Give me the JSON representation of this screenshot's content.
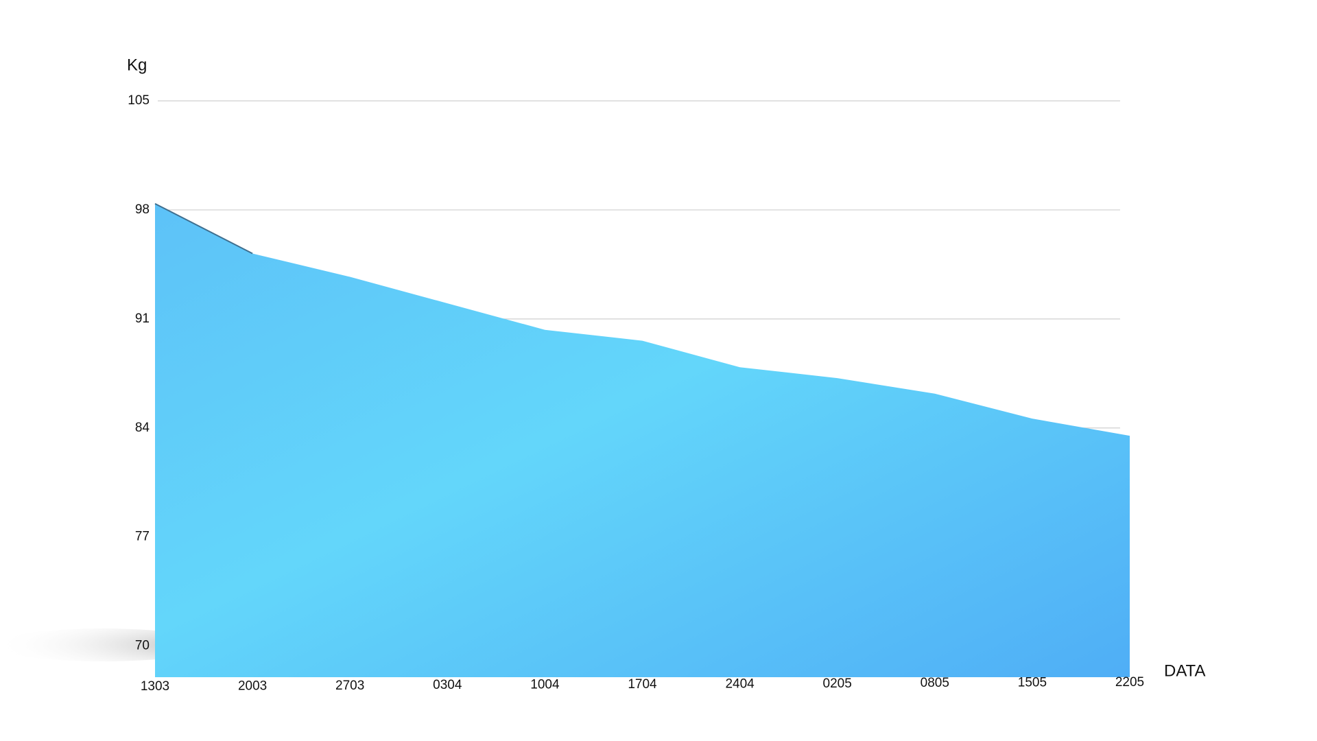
{
  "chart_data": {
    "type": "area",
    "y_label": "Kg",
    "x_label": "DATA",
    "categories": [
      "1303",
      "2003",
      "2703",
      "0304",
      "1004",
      "1704",
      "2404",
      "0205",
      "0805",
      "1505",
      "2205"
    ],
    "values": [
      98.4,
      95.2,
      93.7,
      92.0,
      90.3,
      89.6,
      87.9,
      87.2,
      86.2,
      84.6,
      83.5
    ],
    "color": "#5ec8f8",
    "ylim": [
      68,
      105
    ],
    "yticks": [
      70,
      77,
      84,
      91,
      98,
      105
    ],
    "grid": true
  }
}
